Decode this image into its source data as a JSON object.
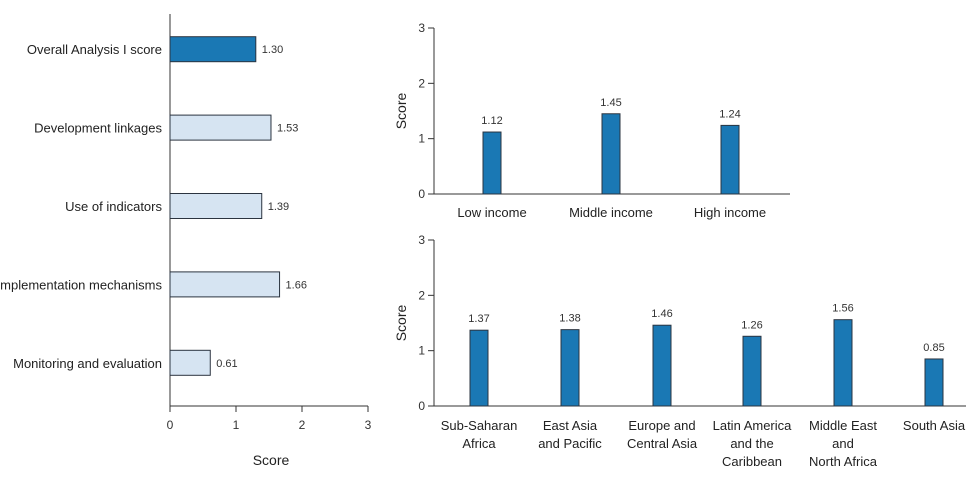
{
  "colors": {
    "highlight_bar": "#1a78b4",
    "light_bar": "#d6e4f2",
    "bar_stroke": "#2b3440",
    "axis": "#333333"
  },
  "chart_data": [
    {
      "id": "components",
      "type": "bar",
      "orientation": "horizontal",
      "categories": [
        "Overall Analysis I score",
        "Development linkages",
        "Use of indicators",
        "Implementation mechanisms",
        "Monitoring and evaluation"
      ],
      "values": [
        1.3,
        1.53,
        1.39,
        1.66,
        0.61
      ],
      "value_labels": [
        "1.30",
        "1.53",
        "1.39",
        "1.66",
        "0.61"
      ],
      "xlabel": "Score",
      "xlim": [
        0,
        3
      ],
      "xticks": [
        "0",
        "1",
        "2",
        "3"
      ],
      "grid": false
    },
    {
      "id": "income",
      "type": "bar",
      "categories": [
        "Low income",
        "Middle income",
        "High income"
      ],
      "values": [
        1.12,
        1.45,
        1.24
      ],
      "value_labels": [
        "1.12",
        "1.45",
        "1.24"
      ],
      "ylabel": "Score",
      "ylim": [
        0,
        3
      ],
      "yticks": [
        "0",
        "1",
        "2",
        "3"
      ],
      "grid": false
    },
    {
      "id": "region",
      "type": "bar",
      "categories": [
        [
          "Sub-Saharan",
          "Africa"
        ],
        [
          "East Asia",
          "and Pacific"
        ],
        [
          "Europe and",
          "Central Asia"
        ],
        [
          "Latin America",
          "and the",
          "Caribbean"
        ],
        [
          "Middle East",
          "and",
          "North Africa"
        ],
        [
          "South Asia"
        ]
      ],
      "values": [
        1.37,
        1.38,
        1.46,
        1.26,
        1.56,
        0.85
      ],
      "value_labels": [
        "1.37",
        "1.38",
        "1.46",
        "1.26",
        "1.56",
        "0.85"
      ],
      "ylabel": "Score",
      "ylim": [
        0,
        3
      ],
      "yticks": [
        "0",
        "1",
        "2",
        "3"
      ],
      "grid": false
    }
  ]
}
